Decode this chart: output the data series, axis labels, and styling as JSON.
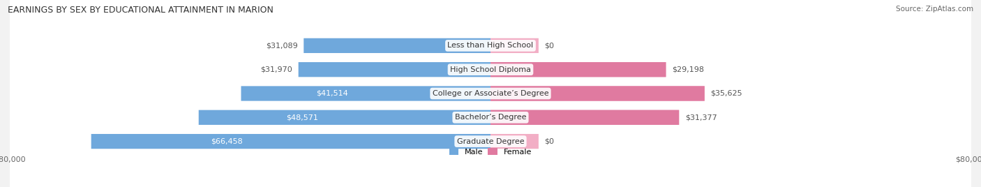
{
  "title": "EARNINGS BY SEX BY EDUCATIONAL ATTAINMENT IN MARION",
  "source": "Source: ZipAtlas.com",
  "categories": [
    "Less than High School",
    "High School Diploma",
    "College or Associate’s Degree",
    "Bachelor’s Degree",
    "Graduate Degree"
  ],
  "male_values": [
    31089,
    31970,
    41514,
    48571,
    66458
  ],
  "female_values": [
    0,
    29198,
    35625,
    31377,
    0
  ],
  "male_color": "#6fa8dc",
  "female_color": "#e07aa0",
  "female_color_light": "#f2aec5",
  "max_value": 80000,
  "bg_row_color": "#e8e8e8",
  "bg_color": "#f2f2f2",
  "title_fontsize": 9,
  "label_fontsize": 8,
  "tick_fontsize": 8,
  "bar_height": 0.62
}
